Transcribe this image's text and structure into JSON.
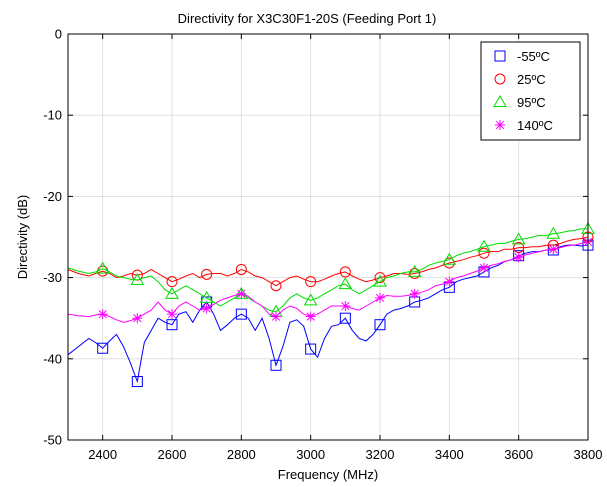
{
  "chart_data": {
    "type": "line",
    "title": "Directivity for X3C30F1-20S (Feeding Port 1)",
    "xlabel": "Frequency (MHz)",
    "ylabel": "Directivity (dB)",
    "xlim": [
      2300,
      3800
    ],
    "ylim": [
      -50,
      0
    ],
    "xticks": [
      2400,
      2600,
      2800,
      3000,
      3200,
      3400,
      3600,
      3800
    ],
    "yticks": [
      -50,
      -40,
      -30,
      -20,
      -10,
      0
    ],
    "grid": true,
    "legend_position": "top-right",
    "series": [
      {
        "name": "-55ºC",
        "color": "#0000ff",
        "marker": "square",
        "x": [
          2300,
          2330,
          2360,
          2380,
          2400,
          2420,
          2440,
          2460,
          2480,
          2500,
          2520,
          2540,
          2560,
          2580,
          2600,
          2620,
          2640,
          2660,
          2680,
          2700,
          2720,
          2740,
          2760,
          2780,
          2800,
          2820,
          2840,
          2860,
          2880,
          2900,
          2920,
          2940,
          2960,
          2980,
          3000,
          3020,
          3040,
          3060,
          3080,
          3100,
          3120,
          3140,
          3160,
          3180,
          3200,
          3220,
          3240,
          3260,
          3280,
          3300,
          3320,
          3340,
          3360,
          3380,
          3400,
          3420,
          3440,
          3460,
          3480,
          3500,
          3520,
          3540,
          3560,
          3580,
          3600,
          3620,
          3640,
          3660,
          3680,
          3700,
          3720,
          3740,
          3760,
          3780,
          3800
        ],
        "y": [
          -39.5,
          -38.5,
          -37.5,
          -38,
          -38.7,
          -37.8,
          -37,
          -38.5,
          -40.5,
          -42.8,
          -38,
          -36.5,
          -35,
          -35.5,
          -35.8,
          -34.5,
          -34.2,
          -35.5,
          -34,
          -33,
          -34.5,
          -36.5,
          -35.8,
          -35,
          -34.5,
          -35,
          -36.5,
          -35,
          -37.5,
          -40.8,
          -38.5,
          -35.5,
          -35.2,
          -36,
          -38.8,
          -39.8,
          -37.5,
          -36,
          -35.8,
          -35,
          -36.5,
          -37.5,
          -37.8,
          -37,
          -35.8,
          -34.5,
          -34,
          -33.8,
          -33.5,
          -33,
          -32.8,
          -32.5,
          -32,
          -31.5,
          -31.2,
          -30.5,
          -30.2,
          -30,
          -29.8,
          -29.3,
          -28.8,
          -28.5,
          -28,
          -27.8,
          -27.3,
          -27,
          -26.8,
          -26.8,
          -26.6,
          -26.6,
          -26.2,
          -26,
          -26,
          -26.1,
          -26
        ]
      },
      {
        "name": "25ºC",
        "color": "#ff0000",
        "marker": "circle",
        "x": [
          2300,
          2330,
          2360,
          2380,
          2400,
          2420,
          2440,
          2460,
          2480,
          2500,
          2520,
          2540,
          2560,
          2580,
          2600,
          2620,
          2640,
          2660,
          2680,
          2700,
          2720,
          2740,
          2760,
          2780,
          2800,
          2820,
          2840,
          2860,
          2880,
          2900,
          2920,
          2940,
          2960,
          2980,
          3000,
          3020,
          3040,
          3060,
          3080,
          3100,
          3120,
          3140,
          3160,
          3180,
          3200,
          3220,
          3240,
          3260,
          3280,
          3300,
          3320,
          3340,
          3360,
          3380,
          3400,
          3420,
          3440,
          3460,
          3480,
          3500,
          3520,
          3540,
          3560,
          3580,
          3600,
          3620,
          3640,
          3660,
          3680,
          3700,
          3720,
          3740,
          3760,
          3780,
          3800
        ],
        "y": [
          -29,
          -29.5,
          -29.8,
          -29.5,
          -29.2,
          -29.5,
          -30,
          -29.8,
          -29.5,
          -29.7,
          -29.5,
          -29,
          -29.5,
          -30,
          -30.5,
          -30.2,
          -29.8,
          -29.5,
          -30,
          -29.6,
          -29.5,
          -29.5,
          -29.8,
          -29.5,
          -29,
          -29.3,
          -29.8,
          -30,
          -30.5,
          -31,
          -30.5,
          -30,
          -29.8,
          -30.2,
          -30.5,
          -30.5,
          -30.2,
          -29.8,
          -29.5,
          -29.3,
          -29.8,
          -30.2,
          -30.5,
          -30.3,
          -30,
          -29.8,
          -29.5,
          -29.5,
          -29.6,
          -29.5,
          -29.3,
          -29,
          -28.8,
          -28.5,
          -28.2,
          -28,
          -27.8,
          -27.5,
          -27.3,
          -27,
          -26.8,
          -26.8,
          -26.5,
          -26.5,
          -26.3,
          -26.3,
          -26.2,
          -26.2,
          -26,
          -26,
          -25.8,
          -25.5,
          -25.3,
          -25.2,
          -25
        ]
      },
      {
        "name": "95ºC",
        "color": "#00dd00",
        "marker": "triangle",
        "x": [
          2300,
          2330,
          2360,
          2380,
          2400,
          2420,
          2440,
          2460,
          2480,
          2500,
          2520,
          2540,
          2560,
          2580,
          2600,
          2620,
          2640,
          2660,
          2680,
          2700,
          2720,
          2740,
          2760,
          2780,
          2800,
          2820,
          2840,
          2860,
          2880,
          2900,
          2920,
          2940,
          2960,
          2980,
          3000,
          3020,
          3040,
          3060,
          3080,
          3100,
          3120,
          3140,
          3160,
          3180,
          3200,
          3220,
          3240,
          3260,
          3280,
          3300,
          3320,
          3340,
          3360,
          3380,
          3400,
          3420,
          3440,
          3460,
          3480,
          3500,
          3520,
          3540,
          3560,
          3580,
          3600,
          3620,
          3640,
          3660,
          3680,
          3700,
          3720,
          3740,
          3760,
          3780,
          3800
        ],
        "y": [
          -28.8,
          -29.2,
          -29.5,
          -29.3,
          -28.9,
          -29.3,
          -29.8,
          -30,
          -30.2,
          -30.3,
          -30,
          -29.8,
          -30.5,
          -31.5,
          -32,
          -31.5,
          -31,
          -31.5,
          -32,
          -32.5,
          -33,
          -33.5,
          -33,
          -32.5,
          -32,
          -32.5,
          -33,
          -33.5,
          -34,
          -34.2,
          -33.5,
          -32.5,
          -32,
          -32.5,
          -32.8,
          -32.5,
          -32,
          -31.5,
          -31,
          -30.8,
          -31.5,
          -32,
          -31.5,
          -31,
          -30.5,
          -30,
          -29.8,
          -29.5,
          -29.3,
          -29.3,
          -29,
          -28.5,
          -28.2,
          -28,
          -27.8,
          -27.3,
          -27,
          -26.8,
          -26.5,
          -26.2,
          -26,
          -25.8,
          -25.8,
          -25.5,
          -25.3,
          -25.2,
          -25,
          -24.8,
          -24.8,
          -24.6,
          -24.5,
          -24.3,
          -24.2,
          -24,
          -24
        ]
      },
      {
        "name": "140ºC",
        "color": "#ff00ff",
        "marker": "star",
        "x": [
          2300,
          2330,
          2360,
          2380,
          2400,
          2420,
          2440,
          2460,
          2480,
          2500,
          2520,
          2540,
          2560,
          2580,
          2600,
          2620,
          2640,
          2660,
          2680,
          2700,
          2720,
          2740,
          2760,
          2780,
          2800,
          2820,
          2840,
          2860,
          2880,
          2900,
          2920,
          2940,
          2960,
          2980,
          3000,
          3020,
          3040,
          3060,
          3080,
          3100,
          3120,
          3140,
          3160,
          3180,
          3200,
          3220,
          3240,
          3260,
          3280,
          3300,
          3320,
          3340,
          3360,
          3380,
          3400,
          3420,
          3440,
          3460,
          3480,
          3500,
          3520,
          3540,
          3560,
          3580,
          3600,
          3620,
          3640,
          3660,
          3680,
          3700,
          3720,
          3740,
          3760,
          3780,
          3800
        ],
        "y": [
          -34.5,
          -34.7,
          -34.8,
          -34.6,
          -34.5,
          -34.8,
          -35.2,
          -35.5,
          -35.3,
          -35,
          -34.5,
          -34,
          -33,
          -34,
          -34.5,
          -33.5,
          -33,
          -33.5,
          -34,
          -33.8,
          -33.3,
          -32.8,
          -32.5,
          -32.2,
          -32,
          -32.3,
          -33,
          -33.5,
          -34.5,
          -34.8,
          -34,
          -33.5,
          -33.8,
          -34.5,
          -34.8,
          -34.5,
          -34,
          -33.5,
          -33.5,
          -33.5,
          -33.8,
          -34,
          -33.5,
          -33,
          -32.5,
          -32.2,
          -32.3,
          -32.3,
          -32.2,
          -32,
          -31.8,
          -31.5,
          -31,
          -30.8,
          -30.5,
          -30,
          -29.8,
          -29.5,
          -29.2,
          -28.8,
          -28.5,
          -28.3,
          -28,
          -27.8,
          -27.5,
          -27.2,
          -27,
          -26.8,
          -26.6,
          -26.5,
          -26.3,
          -26.1,
          -26,
          -25.8,
          -25.6
        ]
      }
    ],
    "marker_x": [
      2400,
      2500,
      2600,
      2700,
      2800,
      2900,
      3000,
      3100,
      3200,
      3300,
      3400,
      3500,
      3600,
      3700,
      3800
    ]
  }
}
